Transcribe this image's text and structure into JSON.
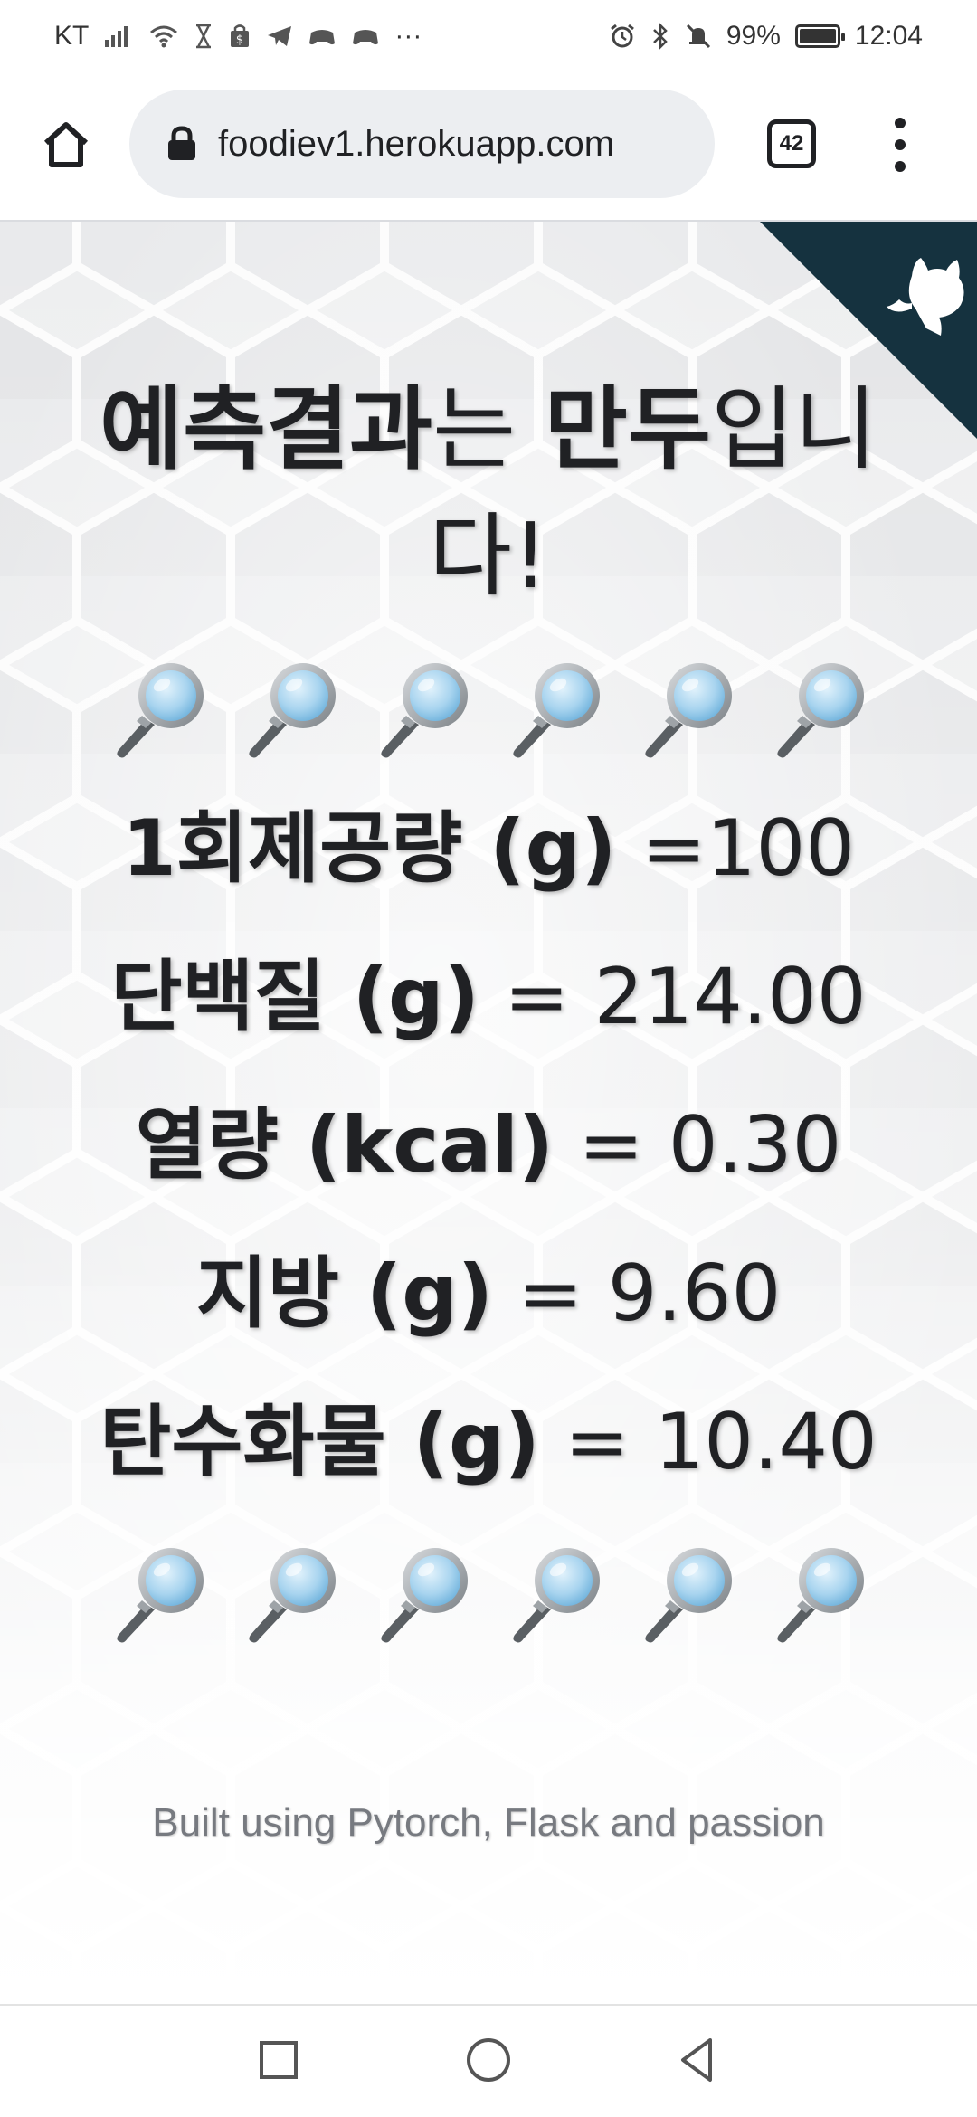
{
  "status_bar": {
    "carrier": "KT",
    "battery_percent": "99%",
    "battery_level": 0.99,
    "time": "12:04",
    "more": "···",
    "icons_left": [
      "signal-icon",
      "wifi-icon",
      "hourglass-icon",
      "shopping-bag-icon",
      "telegram-icon",
      "game-icon",
      "game-icon-2",
      "more-icon"
    ],
    "icons_right": [
      "alarm-icon",
      "bluetooth-icon",
      "mute-icon",
      "battery-icon"
    ]
  },
  "browser": {
    "url": "foodiev1.herokuapp.com",
    "tab_count": "42",
    "icons": [
      "home-icon",
      "lock-icon",
      "tabs-icon",
      "menu-icon"
    ]
  },
  "result": {
    "title_strong_1": "예측결과",
    "title_plain_1": "는 ",
    "title_strong_2": "만두",
    "title_plain_2": "입니다!"
  },
  "nutrients": [
    {
      "label": "1회제공량 (g)",
      "value": " =100"
    },
    {
      "label": "단백질 (g)",
      "value": " = 214.00"
    },
    {
      "label": "열량 (kcal)",
      "value": " = 0.30"
    },
    {
      "label": "지방 (g)",
      "value": " = 9.60"
    },
    {
      "label": "탄수화물 (g)",
      "value": " = 10.40"
    }
  ],
  "footer": {
    "text": "Built using Pytorch, Flask and passion"
  },
  "colors": {
    "corner_banner": "#15323f",
    "text": "#202124",
    "footer_text": "#777a80",
    "magnifier_lens": "#a8d4ef"
  }
}
